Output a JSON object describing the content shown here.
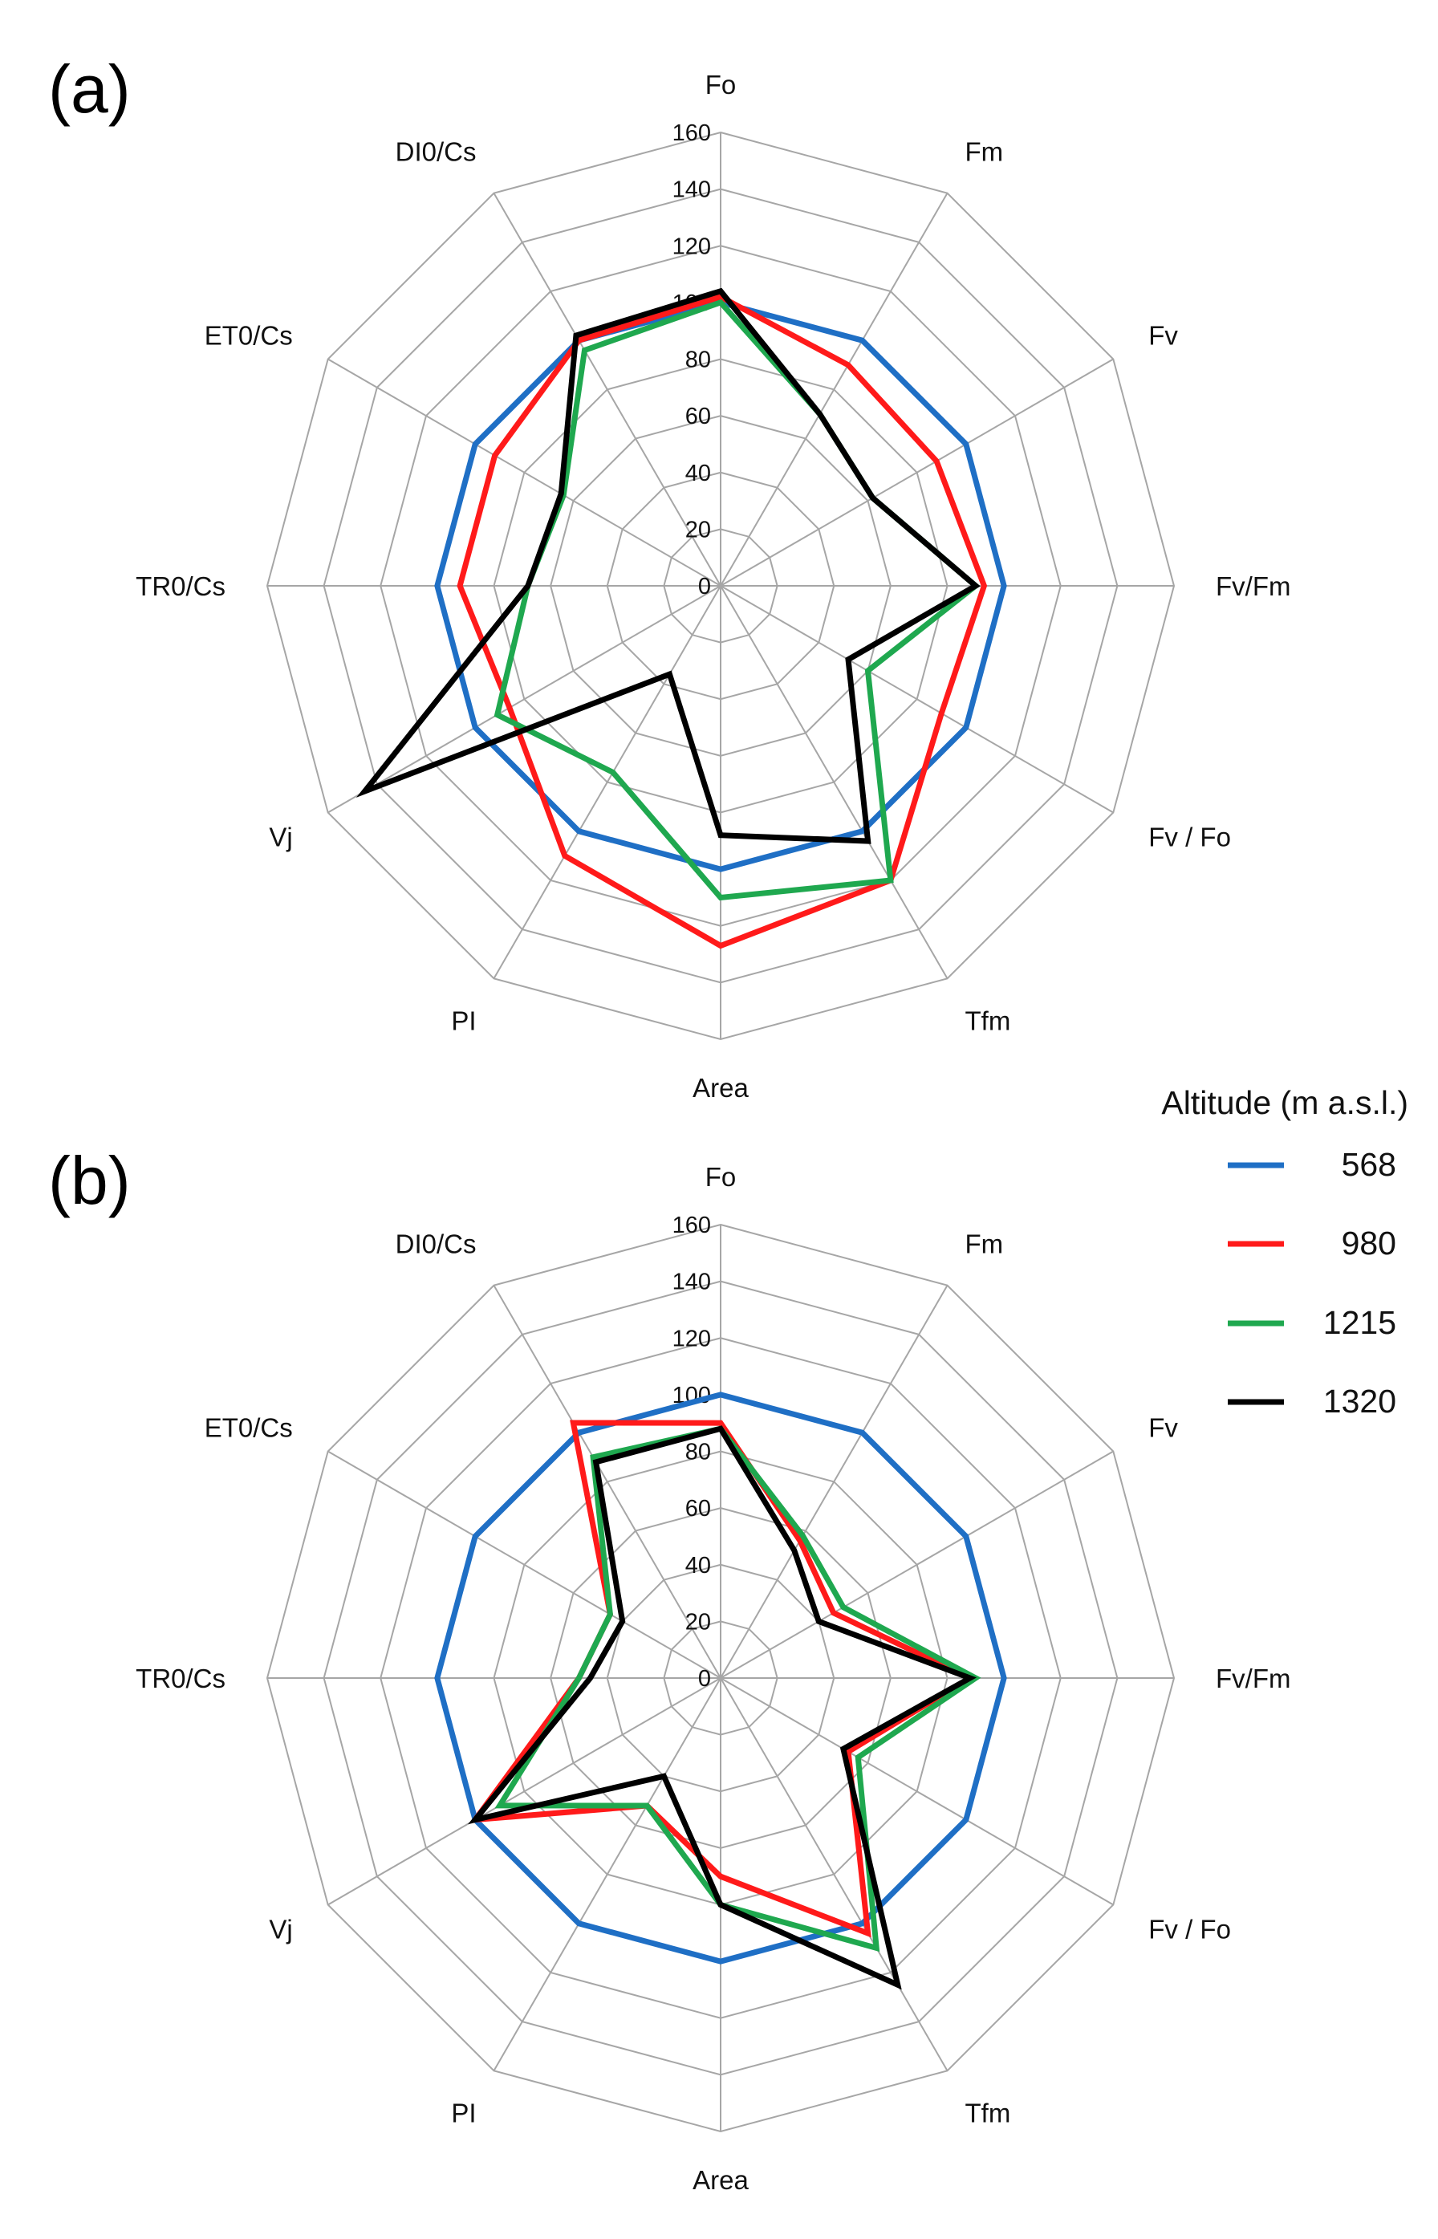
{
  "chart_data": [
    {
      "type": "radar",
      "panel": "(a)",
      "axes": [
        "Fo",
        "Fm",
        "Fv",
        "Fv/Fm",
        "Fv / Fo",
        "Tfm",
        "Area",
        "PI",
        "Vj",
        "TR0/Cs",
        "ET0/Cs",
        "DI0/Cs"
      ],
      "ticks": [
        "0",
        "20",
        "40",
        "60",
        "80",
        "100",
        "120",
        "140",
        "160"
      ],
      "rlim": [
        0,
        160
      ],
      "series": [
        {
          "name": "568",
          "values": [
            100,
            100,
            100,
            100,
            100,
            100,
            100,
            100,
            100,
            100,
            100,
            100
          ]
        },
        {
          "name": "980",
          "values": [
            102,
            90,
            88,
            93,
            90,
            120,
            127,
            110,
            86,
            92,
            92,
            100
          ]
        },
        {
          "name": "1215",
          "values": [
            100,
            70,
            62,
            90,
            60,
            120,
            110,
            76,
            91,
            68,
            64,
            96
          ]
        },
        {
          "name": "1320",
          "values": [
            104,
            70,
            62,
            90,
            52,
            104,
            88,
            36,
            145,
            68,
            65,
            102
          ]
        }
      ]
    },
    {
      "type": "radar",
      "panel": "(b)",
      "axes": [
        "Fo",
        "Fm",
        "Fv",
        "Fv/Fm",
        "Fv / Fo",
        "Tfm",
        "Area",
        "PI",
        "Vj",
        "TR0/Cs",
        "ET0/Cs",
        "DI0/Cs"
      ],
      "ticks": [
        "0",
        "20",
        "40",
        "60",
        "80",
        "100",
        "120",
        "140",
        "160"
      ],
      "rlim": [
        0,
        160
      ],
      "series": [
        {
          "name": "568",
          "values": [
            100,
            100,
            100,
            100,
            100,
            100,
            100,
            100,
            100,
            100,
            100,
            100
          ]
        },
        {
          "name": "980",
          "values": [
            90,
            56,
            46,
            88,
            52,
            104,
            70,
            52,
            100,
            50,
            45,
            104
          ]
        },
        {
          "name": "1215",
          "values": [
            88,
            58,
            50,
            90,
            56,
            110,
            80,
            52,
            90,
            50,
            45,
            90
          ]
        },
        {
          "name": "1320",
          "values": [
            88,
            52,
            40,
            88,
            50,
            125,
            80,
            40,
            100,
            46,
            40,
            88
          ]
        }
      ]
    }
  ],
  "legend": {
    "title": "Altitude (m a.s.l.)",
    "entries": [
      {
        "label": "568",
        "color": "#1f6fc5"
      },
      {
        "label": "980",
        "color": "#ff1a1a"
      },
      {
        "label": "1215",
        "color": "#1fa84f"
      },
      {
        "label": "1320",
        "color": "#000000"
      }
    ]
  }
}
